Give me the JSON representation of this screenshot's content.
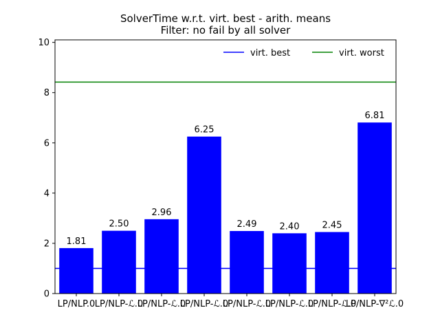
{
  "chart_data": {
    "type": "bar",
    "title": "SolverTime w.r.t. virt. best - arith. means",
    "subtitle": "Filter: no fail by all solver",
    "xlabel": "",
    "ylabel": "",
    "categories": [
      "LP/NLP.0",
      "LP/NLP-ℒ.0",
      "LP/NLP-ℒ.0",
      "LP/NLP-ℒ.0",
      "LP/NLP-ℒ.0",
      "LP/NLP-ℒ.0",
      "LP/NLP-ℒ.0",
      "LP/NLP-∇²ℒ.0"
    ],
    "values": [
      1.81,
      2.5,
      2.96,
      6.25,
      2.49,
      2.4,
      2.45,
      6.81
    ],
    "value_labels": [
      "1.81",
      "2.50",
      "2.96",
      "6.25",
      "2.49",
      "2.40",
      "2.45",
      "6.81"
    ],
    "bar_color": "#0000ff",
    "ylim": [
      0,
      10.1
    ],
    "yticks": [
      0,
      2,
      4,
      6,
      8,
      10
    ],
    "ytick_labels": [
      "0",
      "2",
      "4",
      "6",
      "8",
      "10"
    ],
    "grid": false,
    "legend_placement": "top-right",
    "reference_lines": [
      {
        "name": "virt. best",
        "value": 1.0,
        "color": "#0000ff"
      },
      {
        "name": "virt. worst",
        "value": 8.42,
        "color": "#008000"
      }
    ]
  }
}
